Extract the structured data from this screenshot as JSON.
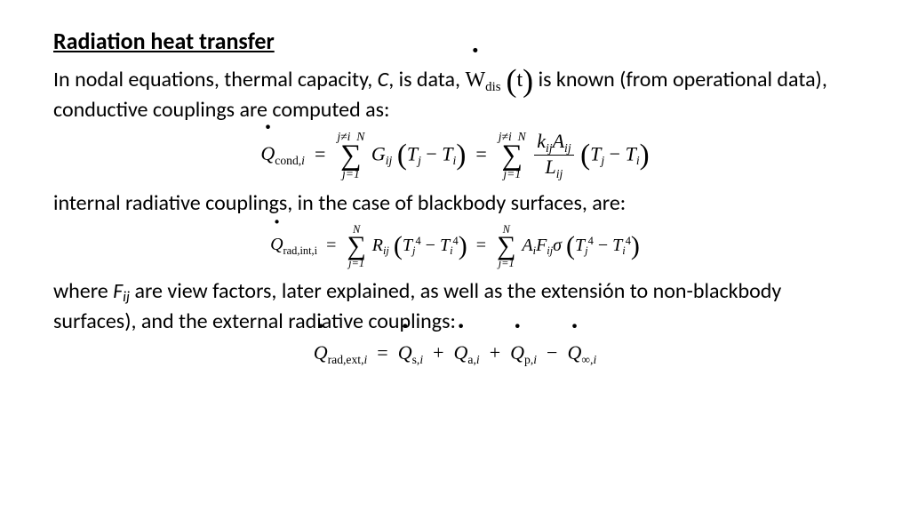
{
  "title": "Radiation heat transfer",
  "para1_pre": "In nodal equations, thermal capacity, ",
  "para1_C": "C",
  "para1_mid": ", is data, ",
  "para1_Wdis_sym": "W",
  "para1_Wdis_sub": "dis",
  "para1_t": "t",
  "para1_post": " is known (from operational data), conductive couplings are computed as:",
  "eq1": {
    "Q": "Q",
    "Qsub": "cond,",
    "Qsub_i": "i",
    "sum_top1": "j≠i",
    "sum_top2": "N",
    "sum_bot": "j=1",
    "G": "G",
    "Gsub": "ij",
    "Tj": "T",
    "Tj_sub": "j",
    "Ti": "T",
    "Ti_sub": "i",
    "k": "k",
    "ksub": "ij",
    "A": "A",
    "Asub": "ij",
    "L": "L",
    "Lsub": "ij"
  },
  "para2": "internal radiative couplings, in the case of blackbody surfaces, are:",
  "eq2": {
    "Q": "Q",
    "Qsub": "rad,int,i",
    "sum_top": "N",
    "sum_bot": "j=1",
    "R": "R",
    "Rsub": "ij",
    "Tj": "T",
    "Tj_sub": "j",
    "Tj_sup": "4",
    "Ti": "T",
    "Ti_sub": "i",
    "Ti_sup": "4",
    "A": "A",
    "Asub": "i",
    "F": "F",
    "Fsub": "ij",
    "sigma": "σ"
  },
  "para3_pre": "where ",
  "para3_F": "F",
  "para3_Fsub": "ij",
  "para3_post": " are view factors, later explained, as well as the extensión to non-blackbody surfaces), and the external radiative couplings:",
  "eq3": {
    "Q": "Q",
    "Q1sub": "rad,ext,",
    "Q1sub_i": "i",
    "Qs": "Q",
    "Qs_sub": "s,",
    "Qs_i": "i",
    "Qa": "Q",
    "Qa_sub": "a,",
    "Qa_i": "i",
    "Qp": "Q",
    "Qp_sub": "p,",
    "Qp_i": "i",
    "Qinf": "Q",
    "Qinf_sub": "∞,",
    "Qinf_i": "i"
  },
  "colors": {
    "text": "#000000",
    "bg": "#ffffff"
  },
  "fontsizes": {
    "title": 26,
    "body": 24,
    "eq": 22
  }
}
